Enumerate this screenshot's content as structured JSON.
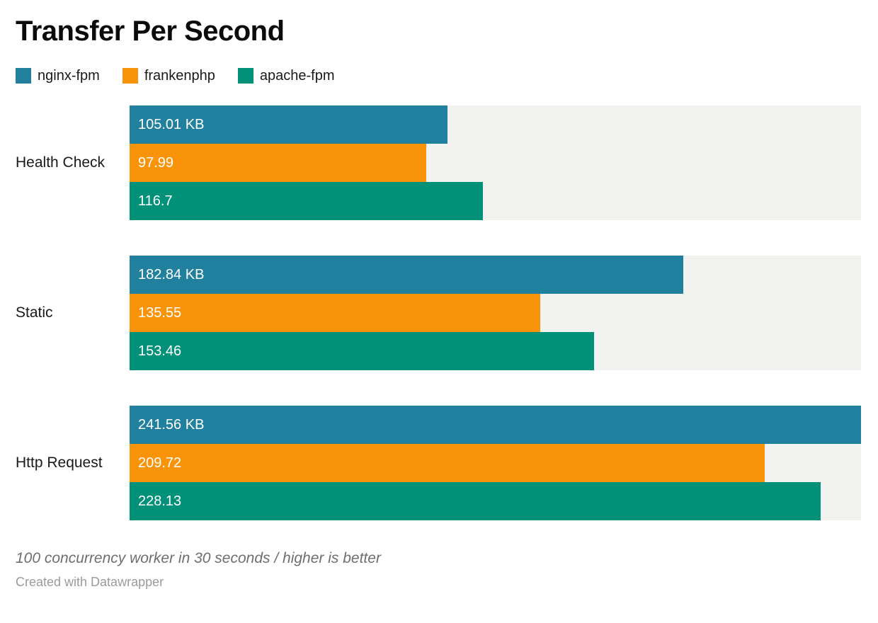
{
  "header": {
    "title": "Transfer Per Second"
  },
  "chart_data": {
    "type": "bar",
    "orientation": "horizontal",
    "title": "Transfer Per Second",
    "categories": [
      "Health Check",
      "Static",
      "Http Request"
    ],
    "series": [
      {
        "name": "nginx-fpm",
        "color": "#21809e",
        "values": [
          105.01,
          182.84,
          241.56
        ],
        "value_labels": [
          "105.01 KB",
          "182.84 KB",
          "241.56 KB"
        ]
      },
      {
        "name": "frankenphp",
        "color": "#f8930a",
        "values": [
          97.99,
          135.55,
          209.72
        ],
        "value_labels": [
          "97.99",
          "135.55",
          "209.72"
        ]
      },
      {
        "name": "apache-fpm",
        "color": "#009178",
        "values": [
          116.7,
          153.46,
          228.13
        ],
        "value_labels": [
          "116.7",
          "153.46",
          "228.13"
        ]
      }
    ],
    "unit": "KB",
    "xmax": 241.56,
    "track_color": "#f2f2f1",
    "value_label_color": "#ffffff",
    "legend_position": "top",
    "grid": false
  },
  "footer": {
    "note": "100 concurrency worker in 30 seconds / higher is better",
    "attribution": "Created with Datawrapper"
  }
}
